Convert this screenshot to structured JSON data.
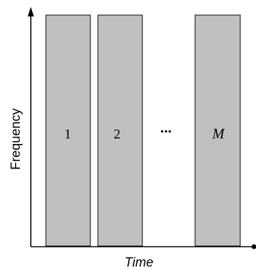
{
  "diagram": {
    "x_axis_label": "Time",
    "y_axis_label": "Frequency",
    "ellipsis": "•••",
    "blocks": [
      {
        "label": "1"
      },
      {
        "label": "2"
      },
      {
        "label": "M"
      }
    ],
    "colors": {
      "block_fill": "#c0c0c0",
      "block_stroke": "#000000",
      "axis": "#000000"
    }
  }
}
